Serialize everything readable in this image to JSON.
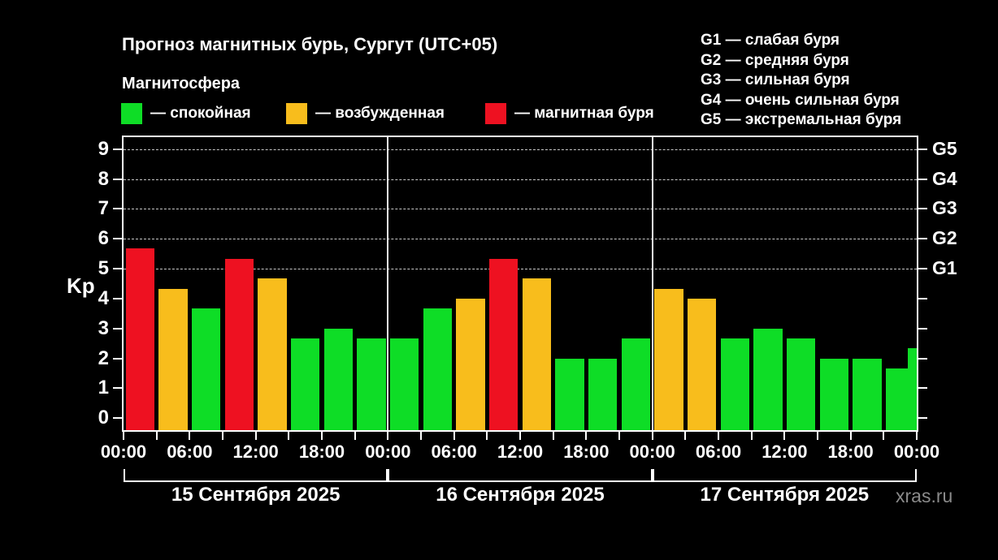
{
  "header": {
    "title": "Прогноз магнитных бурь, Сургут (UTC+05)",
    "subtitle": "Магнитосфера"
  },
  "watermark": "xras.ru",
  "legend": {
    "items": [
      {
        "label": "— спокойная",
        "status": "quiet"
      },
      {
        "label": "— возбужденная",
        "status": "excited"
      },
      {
        "label": "— магнитная буря",
        "status": "storm"
      }
    ]
  },
  "g_scale": [
    "G1 — слабая буря",
    "G2 — средняя буря",
    "G3 — сильная буря",
    "G4 — очень сильная буря",
    "G5 — экстремальная буря"
  ],
  "colors": {
    "quiet": "#0edd26",
    "excited": "#f8bd1c",
    "storm": "#ee1121",
    "background": "#000000",
    "axis": "#ffffff",
    "grid": "#c9c9c9",
    "watermark": "#8a8a8a"
  },
  "chart_data": {
    "type": "bar",
    "title": "Прогноз магнитных бурь, Сургут (UTC+05)",
    "ylabel": "Kp",
    "ylim": [
      -0.4,
      9.4
    ],
    "y_ticks": [
      0,
      1,
      2,
      3,
      4,
      5,
      6,
      7,
      8,
      9
    ],
    "gridlines_at": [
      5,
      6,
      7,
      8,
      9
    ],
    "right_axis": [
      {
        "label": "G1",
        "kp": 5
      },
      {
        "label": "G2",
        "kp": 6
      },
      {
        "label": "G3",
        "kp": 7
      },
      {
        "label": "G4",
        "kp": 8
      },
      {
        "label": "G5",
        "kp": 9
      }
    ],
    "x_tick_labels": [
      "00:00",
      "06:00",
      "12:00",
      "18:00",
      "00:00",
      "06:00",
      "12:00",
      "18:00",
      "00:00",
      "06:00",
      "12:00",
      "18:00",
      "00:00"
    ],
    "legend_position": "top",
    "grid": "dashed horizontal at Kp 5-9",
    "days": [
      {
        "date": "15 Сентября 2025",
        "bars": [
          {
            "time": "00:00",
            "kp": 5.67,
            "status": "storm"
          },
          {
            "time": "03:00",
            "kp": 4.33,
            "status": "excited"
          },
          {
            "time": "06:00",
            "kp": 3.67,
            "status": "quiet"
          },
          {
            "time": "09:00",
            "kp": 5.33,
            "status": "storm"
          },
          {
            "time": "12:00",
            "kp": 4.67,
            "status": "excited"
          },
          {
            "time": "15:00",
            "kp": 2.67,
            "status": "quiet"
          },
          {
            "time": "18:00",
            "kp": 3.0,
            "status": "quiet"
          },
          {
            "time": "21:00",
            "kp": 2.67,
            "status": "quiet"
          }
        ]
      },
      {
        "date": "16 Сентября 2025",
        "bars": [
          {
            "time": "00:00",
            "kp": 2.67,
            "status": "quiet"
          },
          {
            "time": "03:00",
            "kp": 3.67,
            "status": "quiet"
          },
          {
            "time": "06:00",
            "kp": 4.0,
            "status": "excited"
          },
          {
            "time": "09:00",
            "kp": 5.33,
            "status": "storm"
          },
          {
            "time": "12:00",
            "kp": 4.67,
            "status": "excited"
          },
          {
            "time": "15:00",
            "kp": 2.0,
            "status": "quiet"
          },
          {
            "time": "18:00",
            "kp": 2.0,
            "status": "quiet"
          },
          {
            "time": "21:00",
            "kp": 2.67,
            "status": "quiet"
          }
        ]
      },
      {
        "date": "17 Сентября 2025",
        "bars": [
          {
            "time": "00:00",
            "kp": 4.33,
            "status": "excited"
          },
          {
            "time": "03:00",
            "kp": 4.0,
            "status": "excited"
          },
          {
            "time": "06:00",
            "kp": 2.67,
            "status": "quiet"
          },
          {
            "time": "09:00",
            "kp": 3.0,
            "status": "quiet"
          },
          {
            "time": "12:00",
            "kp": 2.67,
            "status": "quiet"
          },
          {
            "time": "15:00",
            "kp": 2.0,
            "status": "quiet"
          },
          {
            "time": "18:00",
            "kp": 2.0,
            "status": "quiet"
          },
          {
            "time": "21:00",
            "kp": 1.67,
            "status": "quiet"
          }
        ]
      }
    ],
    "partial_next_bar": {
      "time": "00:00",
      "kp": 2.33,
      "status": "quiet"
    }
  }
}
